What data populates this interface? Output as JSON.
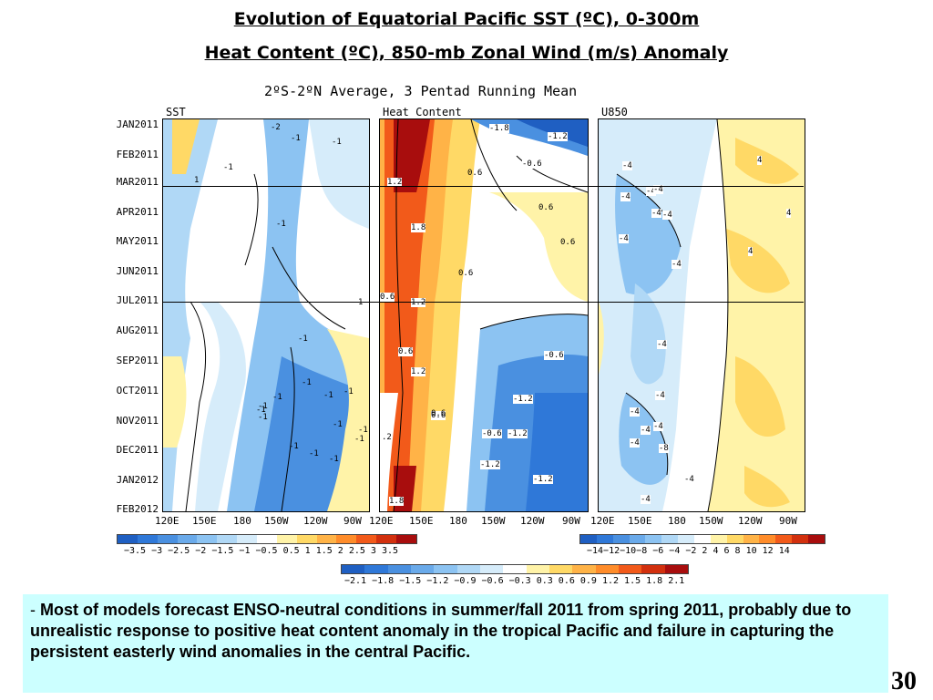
{
  "titles": {
    "line1": "Evolution of Equatorial Pacific SST (ºC), 0-300m",
    "line2": "Heat Content (ºC), 850-mb Zonal Wind (m/s) Anomaly",
    "subtitle": "2ºS-2ºN Average, 3 Pentad Running Mean"
  },
  "panels": {
    "sst": "SST",
    "heat": "Heat Content",
    "wind": "U850"
  },
  "y_axis": [
    "JAN2011",
    "FEB2011",
    "MAR2011",
    "APR2011",
    "MAY2011",
    "JUN2011",
    "JUL2011",
    "AUG2011",
    "SEP2011",
    "OCT2011",
    "NOV2011",
    "DEC2011",
    "JAN2012",
    "FEB2012"
  ],
  "x_axis": [
    "120E",
    "150E",
    "180",
    "150W",
    "120W",
    "90W"
  ],
  "contour_labels": {
    "sst": [
      "-2",
      "-1",
      "-1",
      "-1",
      "1",
      "-1",
      "-1",
      "-1",
      "-1",
      "1",
      "-1",
      "-1",
      "-1",
      "-1",
      "-1",
      "-1",
      "-1",
      "-1",
      "-1",
      "-1",
      "-1"
    ],
    "heat": [
      "-1.8",
      "-1.2",
      "-0.6",
      "0.6",
      "1.2",
      "0.6",
      "1.8",
      "0.6",
      "0.6",
      "0.6",
      "0.6",
      "1.2",
      "0.6",
      "-0.6",
      "1.2",
      "-1.2",
      "0.6",
      "-0.6",
      "-1.2",
      ".2",
      "-1.2",
      "-1.2",
      "1.8"
    ],
    "wind": [
      "-4",
      "-4",
      "-4",
      "-4",
      "-4",
      "-4",
      "-4",
      "-4",
      "-4",
      "-4",
      "-4",
      "-4",
      "-8",
      "-4",
      "-4",
      "-4",
      "4",
      "4",
      "4",
      "-4"
    ]
  },
  "colorbars": {
    "sst": {
      "ticks": "−3.5 −3 −2.5 −2 −1.5 −1 −0.5 0.5  1  1.5  2  2.5  3  3.5",
      "colors": [
        "#1f5fc2",
        "#2f78d8",
        "#4a90e0",
        "#6aaaea",
        "#8cc3f2",
        "#b0d8f6",
        "#d6ecfa",
        "#ffffff",
        "#fff3a8",
        "#ffd966",
        "#ffb347",
        "#ff8c2a",
        "#f25a1a",
        "#d2300e",
        "#a80d0d"
      ]
    },
    "heat": {
      "ticks": "−2.1 −1.8 −1.5 −1.2 −0.9 −0.6 −0.3 0.3  0.6  0.9  1.2  1.5  1.8  2.1",
      "colors": [
        "#1f5fc2",
        "#2f78d8",
        "#4a90e0",
        "#6aaaea",
        "#8cc3f2",
        "#b0d8f6",
        "#d6ecfa",
        "#ffffff",
        "#fff3a8",
        "#ffd966",
        "#ffb347",
        "#ff8c2a",
        "#f25a1a",
        "#d2300e",
        "#a80d0d"
      ]
    },
    "wind": {
      "ticks": "−14−12−10−8 −6 −4 −2  2   4   6   8  10  12  14",
      "colors": [
        "#1f5fc2",
        "#2f78d8",
        "#4a90e0",
        "#6aaaea",
        "#8cc3f2",
        "#b0d8f6",
        "#d6ecfa",
        "#ffffff",
        "#fff3a8",
        "#ffd966",
        "#ffb347",
        "#ff8c2a",
        "#f25a1a",
        "#d2300e",
        "#a80d0d"
      ]
    }
  },
  "note": {
    "dash": "- ",
    "text": "Most of models forecast ENSO-neutral conditions in summer/fall 2011 from spring 2011, probably due to unrealistic response to positive heat content anomaly in the tropical Pacific and failure in capturing the persistent easterly wind anomalies in the central Pacific."
  },
  "page_number": "30"
}
